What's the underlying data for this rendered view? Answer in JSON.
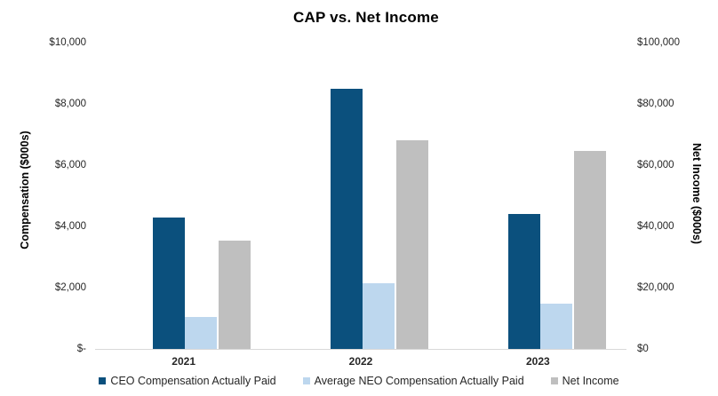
{
  "title": "CAP vs. Net Income",
  "left_axis": {
    "title": "Compensation ($000s)",
    "tick_labels": [
      "$10,000",
      "$8,000",
      "$6,000",
      "$4,000",
      "$2,000",
      "$-"
    ],
    "max": 10000
  },
  "right_axis": {
    "title": "Net Income ($000s)",
    "tick_labels": [
      "$100,000",
      "$80,000",
      "$60,000",
      "$40,000",
      "$20,000",
      "$0"
    ],
    "max": 100000
  },
  "colors": {
    "ceo_bar": "#0B507D",
    "neo_bar": "#BDD7EE",
    "net_income_bar": "#BFBFBF",
    "axis_line": "#D9D9D9"
  },
  "chart_data": {
    "type": "bar",
    "title": "CAP vs. Net Income",
    "categories": [
      "2021",
      "2022",
      "2023"
    ],
    "series": [
      {
        "name": "CEO Compensation Actually Paid",
        "axis": "left",
        "color": "#0B507D",
        "values": [
          4300,
          8500,
          4400
        ]
      },
      {
        "name": "Average NEO Compensation Actually Paid",
        "axis": "left",
        "color": "#BDD7EE",
        "values": [
          1050,
          2150,
          1475
        ]
      },
      {
        "name": "Net Income",
        "axis": "right",
        "color": "#BFBFBF",
        "values": [
          35500,
          68000,
          64500
        ]
      }
    ],
    "ylabel_left": "Compensation ($000s)",
    "ylabel_right": "Net Income ($000s)",
    "ylim_left": [
      0,
      10000
    ],
    "ylim_right": [
      0,
      100000
    ],
    "grid": false,
    "legend_position": "bottom"
  }
}
